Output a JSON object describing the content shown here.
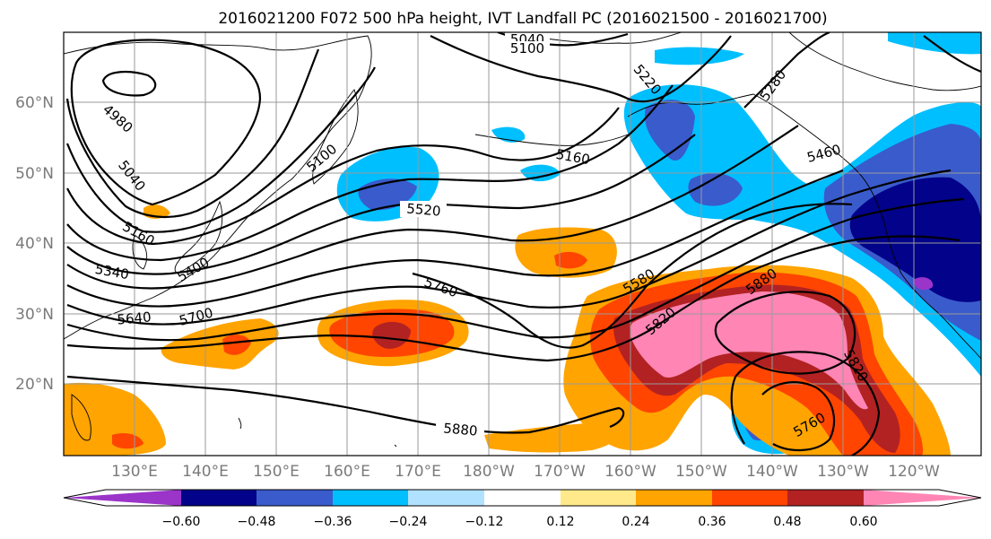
{
  "title": "2016021200 F072 500 hPa height, IVT Landfall PC (2016021500 - 2016021700)",
  "lat_labels": [
    "60°N",
    "50°N",
    "40°N",
    "30°N",
    "20°N"
  ],
  "lon_labels": [
    "130°E",
    "140°E",
    "150°E",
    "160°E",
    "170°E",
    "180°W",
    "170°W",
    "160°W",
    "150°W",
    "140°W",
    "130°W",
    "120°W"
  ],
  "colorbar": {
    "tick_labels": [
      "−0.60",
      "−0.48",
      "−0.36",
      "−0.24",
      "−0.12",
      "0.12",
      "0.24",
      "0.36",
      "0.48",
      "0.60"
    ],
    "colors": [
      "#9b34c9",
      "#02028a",
      "#3a5bcc",
      "#00bfff",
      "#b0e2ff",
      "#ffffff",
      "#ffe98a",
      "#ffa400",
      "#ff4500",
      "#b22222",
      "#ff85b4"
    ]
  },
  "contour_labels": [
    "5040",
    "5100",
    "5220",
    "5280",
    "4980",
    "5040",
    "5160",
    "5160",
    "5520",
    "5460",
    "5100",
    "5340",
    "5400",
    "5580",
    "5640",
    "5700",
    "5760",
    "5880",
    "5820",
    "5880",
    "5820",
    "5760"
  ]
}
